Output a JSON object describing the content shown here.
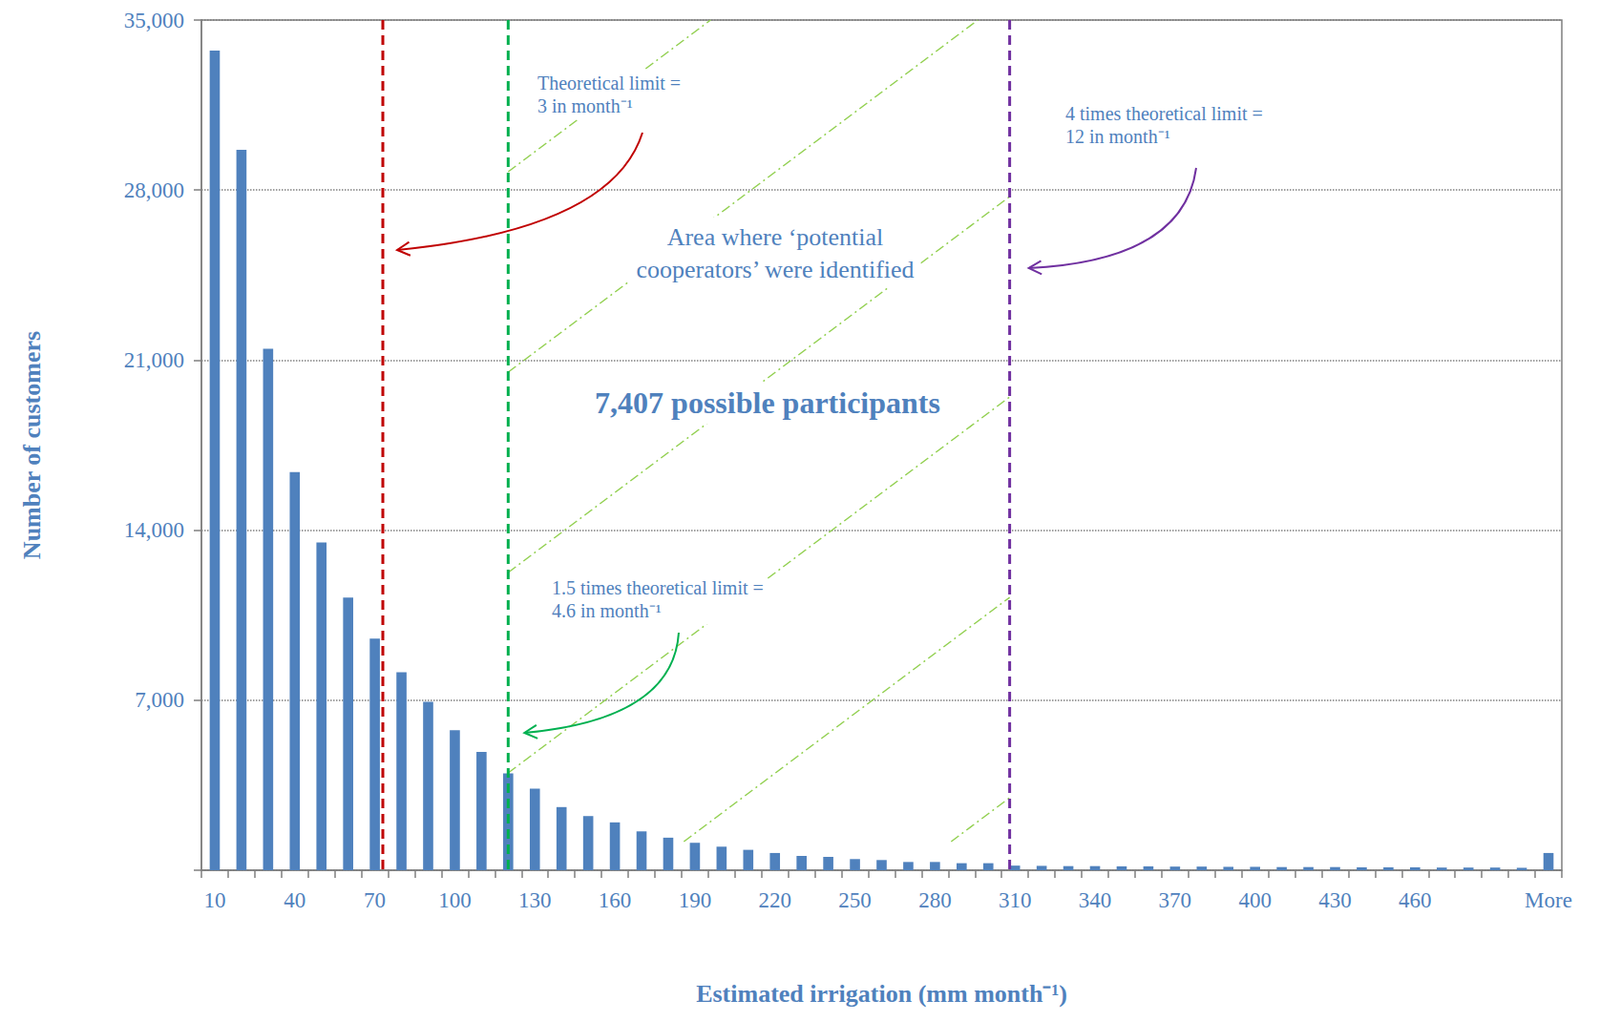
{
  "chart_data": {
    "type": "bar",
    "xlabel": "Estimated irrigation (mm month⁻¹)",
    "ylabel": "Number of customers",
    "categories": [
      "10",
      null,
      null,
      "40",
      null,
      null,
      "70",
      null,
      null,
      "100",
      null,
      null,
      "130",
      null,
      null,
      "160",
      null,
      null,
      "190",
      null,
      null,
      "220",
      null,
      null,
      "250",
      null,
      null,
      "280",
      null,
      null,
      "310",
      null,
      null,
      "340",
      null,
      null,
      "370",
      null,
      null,
      "400",
      null,
      null,
      "430",
      null,
      null,
      "460",
      null,
      null,
      null,
      null,
      "More"
    ],
    "values": [
      33740,
      29660,
      21470,
      16390,
      13490,
      11220,
      9540,
      8150,
      6930,
      5760,
      4870,
      3990,
      3360,
      2600,
      2230,
      1970,
      1600,
      1340,
      1130,
      970,
      840,
      710,
      590,
      550,
      460,
      420,
      340,
      340,
      290,
      290,
      190,
      180,
      170,
      170,
      160,
      160,
      150,
      150,
      140,
      140,
      130,
      130,
      130,
      120,
      120,
      120,
      110,
      110,
      110,
      100,
      710
    ],
    "color": "#4f81bd",
    "ylim": [
      0,
      35000
    ],
    "yticks": [
      {
        "value": 7000,
        "label": "7,000"
      },
      {
        "value": 14000,
        "label": "14,000"
      },
      {
        "value": 21000,
        "label": "21,000"
      },
      {
        "value": 28000,
        "label": "28,000"
      },
      {
        "value": 35000,
        "label": "35,000"
      }
    ],
    "grid": true,
    "annotations": [
      {
        "type": "vline",
        "x": 73,
        "color": "#c00000",
        "text": "Theoretical limit =\n3 in month⁻¹"
      },
      {
        "type": "vline",
        "x": 120,
        "color": "#00b050",
        "text": "1.5 times theoretical limit =\n4.6 in month⁻¹"
      },
      {
        "type": "vline",
        "x": 308,
        "color": "#7030a0",
        "text": "4 times theoretical limit =\n12 in month⁻¹"
      },
      {
        "type": "text",
        "text": "Area where ‘potential\ncooperators’ were identified"
      },
      {
        "type": "text",
        "text": "7,407 possible participants"
      }
    ]
  }
}
